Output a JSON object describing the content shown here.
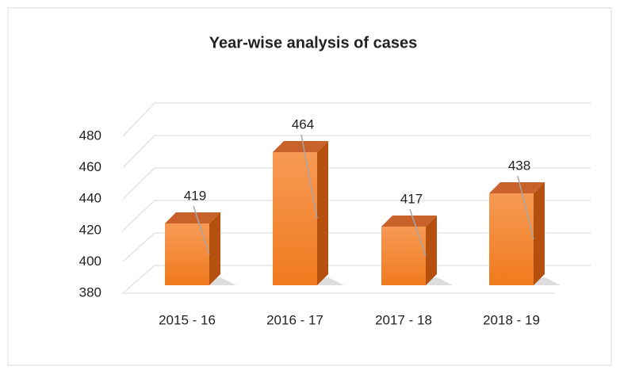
{
  "chart_data": {
    "type": "bar",
    "title": "Year-wise analysis of cases",
    "categories": [
      "2015 - 16",
      "2016 - 17",
      "2017 - 18",
      "2018 - 19"
    ],
    "values": [
      419,
      464,
      417,
      438
    ],
    "color": "#f07f2a",
    "ylim": [
      380,
      480
    ],
    "yticks": [
      380,
      400,
      420,
      440,
      460,
      480
    ],
    "grid": true
  }
}
